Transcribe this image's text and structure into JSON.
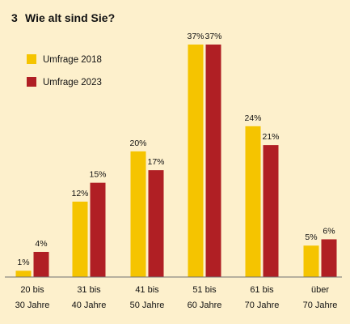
{
  "figure": {
    "number": "3",
    "title": "Wie alt sind Sie?"
  },
  "colors": {
    "background": "#fdf0cc",
    "series_2018": "#f5c400",
    "series_2023": "#b01f24",
    "baseline": "#6f6f6f",
    "text": "#111111"
  },
  "chart_data": {
    "type": "bar",
    "title": "Wie alt sind Sie?",
    "categories": [
      [
        "20 bis",
        "30 Jahre"
      ],
      [
        "31 bis",
        "40 Jahre"
      ],
      [
        "41 bis",
        "50 Jahre"
      ],
      [
        "51 bis",
        "60 Jahre"
      ],
      [
        "61 bis",
        "70 Jahre"
      ],
      [
        "über",
        "70 Jahre"
      ]
    ],
    "series": [
      {
        "name": "Umfrage 2018",
        "values": [
          1,
          12,
          20,
          37,
          24,
          5
        ],
        "labels": [
          "1%",
          "12%",
          "20%",
          "37%",
          "24%",
          "5%"
        ],
        "color": "#f5c400"
      },
      {
        "name": "Umfrage 2023",
        "values": [
          4,
          15,
          17,
          37,
          21,
          6
        ],
        "labels": [
          "4%",
          "15%",
          "17%",
          "37%",
          "21%",
          "6%"
        ],
        "color": "#b01f24"
      }
    ],
    "ylim": [
      0,
      37
    ],
    "xlabel": "",
    "ylabel": "",
    "grid": false,
    "legend_position": "top-left"
  }
}
